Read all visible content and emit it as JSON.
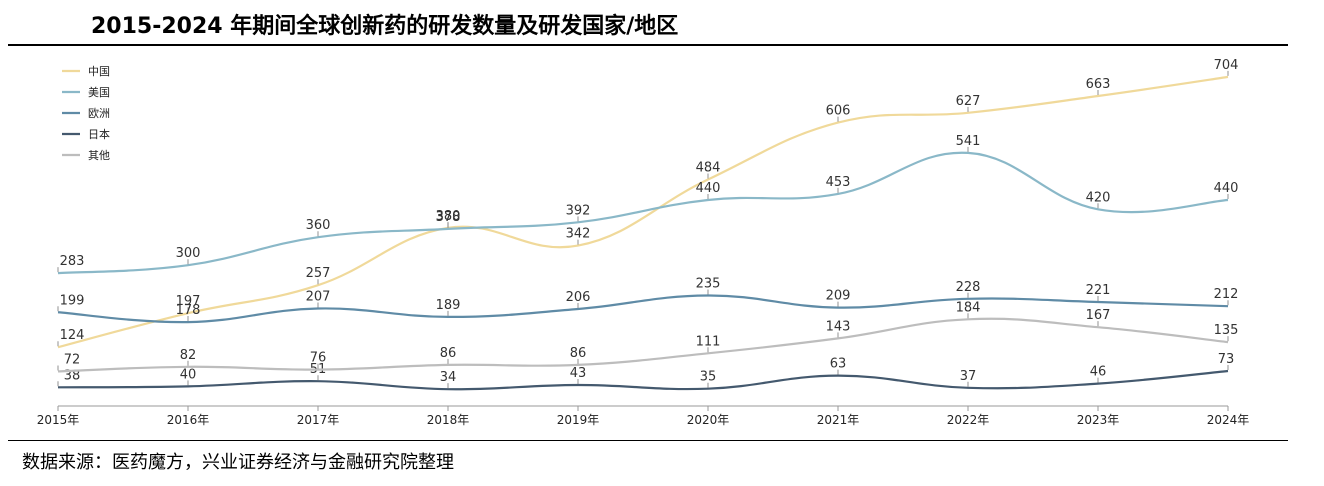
{
  "title": "2015-2024 年期间全球创新药的研发数量及研发国家/地区",
  "source": "数据来源：医药魔方，兴业证券经济与金融研究院整理",
  "chart_data": {
    "type": "line",
    "title": "2015-2024 年期间全球创新药的研发数量及研发国家/地区",
    "categories": [
      "2015年",
      "2016年",
      "2017年",
      "2018年",
      "2019年",
      "2020年",
      "2021年",
      "2022年",
      "2023年",
      "2024年"
    ],
    "legend_position": "top-left",
    "grid": false,
    "series": [
      {
        "name": "中国",
        "color": "#f0d99a",
        "values": [
          124,
          197,
          257,
          380,
          342,
          484,
          606,
          627,
          663,
          704
        ]
      },
      {
        "name": "美国",
        "color": "#8ab8c8",
        "values": [
          283,
          300,
          360,
          378,
          392,
          440,
          453,
          541,
          420,
          440
        ]
      },
      {
        "name": "欧洲",
        "color": "#5f8ba6",
        "values": [
          199,
          178,
          207,
          189,
          206,
          235,
          209,
          228,
          221,
          212
        ]
      },
      {
        "name": "日本",
        "color": "#44596e",
        "values": [
          38,
          40,
          51,
          34,
          43,
          35,
          63,
          37,
          46,
          73
        ]
      },
      {
        "name": "其他",
        "color": "#bdbdbd",
        "values": [
          72,
          82,
          76,
          86,
          86,
          111,
          143,
          184,
          167,
          135
        ]
      }
    ]
  }
}
